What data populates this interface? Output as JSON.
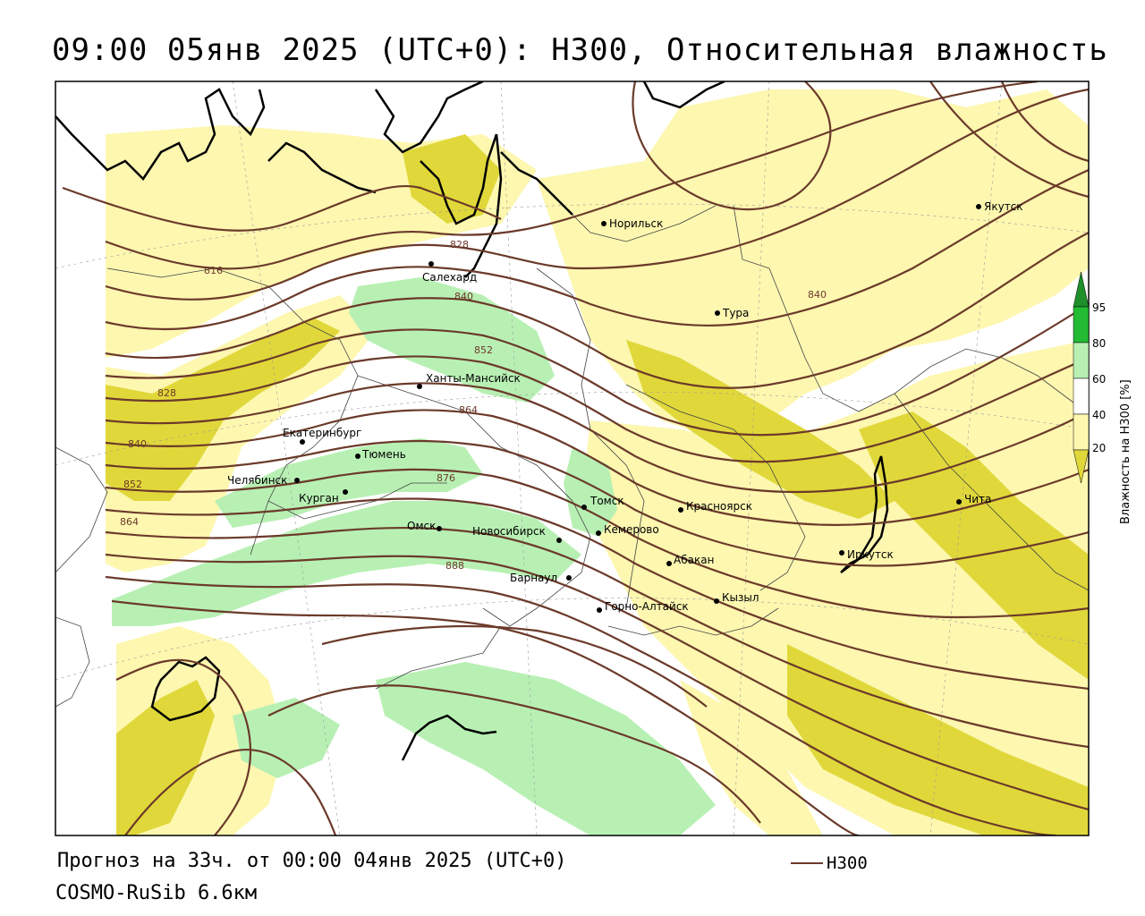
{
  "title": "09:00 05янв 2025 (UTC+0): H300, Относительная влажность",
  "forecast_line": "Прогноз на 33ч. от 00:00 04янв 2025 (UTC+0)",
  "model_line": "COSMO-RuSib 6.6км",
  "legend": {
    "label": "H300",
    "line_color": "#6b3a2a"
  },
  "colorbar": {
    "title": "Влажность на H300 [%]",
    "ticks": [
      "95",
      "80",
      "60",
      "40",
      "20"
    ],
    "colors": {
      "lt20": "#ffffff",
      "c20_40": "#ffffff",
      "c40_60": "#fdf7b0",
      "c60_80": "#e0d83a",
      "c80_95": "#b8f0b4",
      "c95": "#22bb33"
    }
  },
  "cities": [
    {
      "name": "Норильск"
    },
    {
      "name": "Якутск"
    },
    {
      "name": "Салехард"
    },
    {
      "name": "Тура"
    },
    {
      "name": "Ханты-Мансийск"
    },
    {
      "name": "Екатеринбург"
    },
    {
      "name": "Тюмень"
    },
    {
      "name": "Челябинск"
    },
    {
      "name": "Курган"
    },
    {
      "name": "Омск"
    },
    {
      "name": "Новосибирск"
    },
    {
      "name": "Томск"
    },
    {
      "name": "Кемерово"
    },
    {
      "name": "Красноярск"
    },
    {
      "name": "Абакан"
    },
    {
      "name": "Барнаул"
    },
    {
      "name": "Горно-Алтайск"
    },
    {
      "name": "Кызыл"
    },
    {
      "name": "Иркутск"
    },
    {
      "name": "Чита"
    }
  ],
  "isoline_labels": [
    "816",
    "828",
    "828",
    "840",
    "840",
    "840",
    "852",
    "852",
    "864",
    "864",
    "876",
    "888"
  ]
}
